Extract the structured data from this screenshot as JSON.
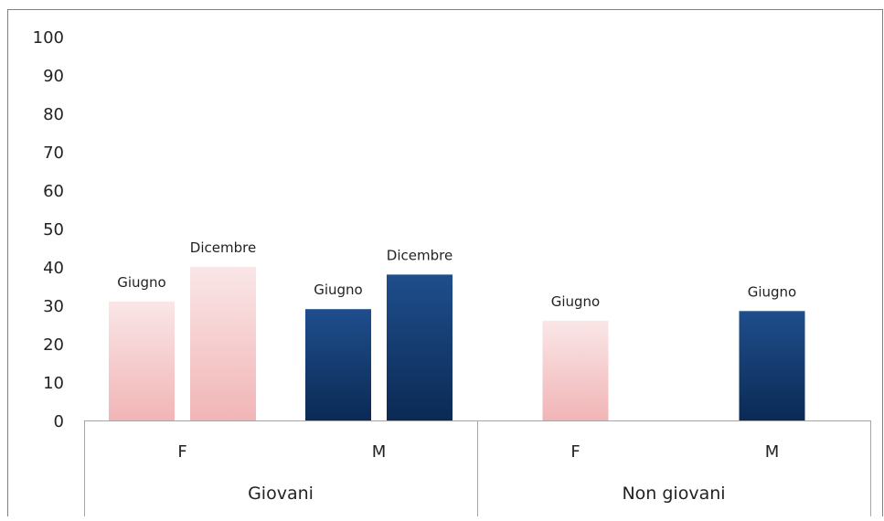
{
  "chart_data": {
    "type": "bar",
    "ylim": [
      0,
      100
    ],
    "yticks": [
      0,
      10,
      20,
      30,
      40,
      50,
      60,
      70,
      80,
      90,
      100
    ],
    "groups": [
      {
        "label": "Giovani",
        "categories": [
          {
            "label": "F",
            "bars": [
              {
                "label": "Giugno",
                "value": 31,
                "color": "f"
              },
              {
                "label": "Dicembre",
                "value": 40,
                "color": "f"
              }
            ]
          },
          {
            "label": "M",
            "bars": [
              {
                "label": "Giugno",
                "value": 29,
                "color": "m"
              },
              {
                "label": "Dicembre",
                "value": 38,
                "color": "m"
              }
            ]
          }
        ]
      },
      {
        "label": "Non giovani",
        "categories": [
          {
            "label": "F",
            "bars": [
              {
                "label": "Giugno",
                "value": 26,
                "color": "f"
              }
            ]
          },
          {
            "label": "M",
            "bars": [
              {
                "label": "Giugno",
                "value": 28.5,
                "color": "m"
              }
            ]
          }
        ]
      }
    ],
    "colors": {
      "f_top": "#fae6e7",
      "f_bottom": "#f1b5b6",
      "m_top": "#1f4e8c",
      "m_bottom": "#0b2a55",
      "axis": "#a6a6a6",
      "border": "#7f7f7f"
    }
  }
}
